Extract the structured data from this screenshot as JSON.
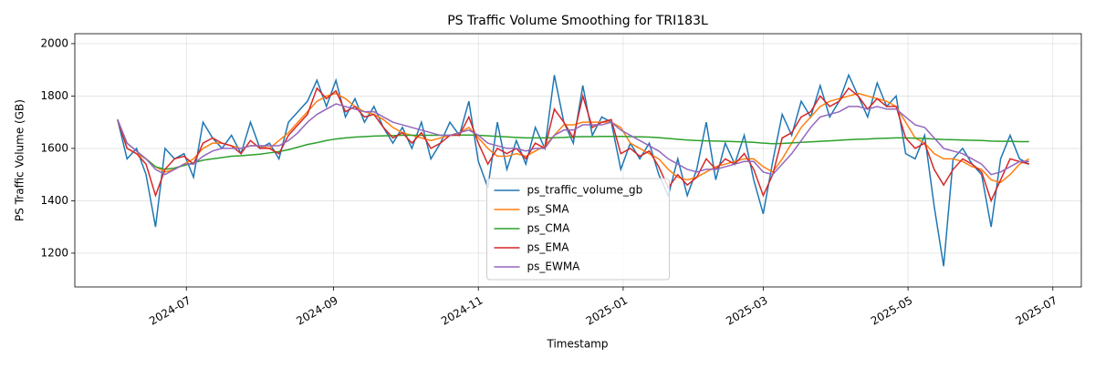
{
  "chart_data": {
    "type": "line",
    "title": "PS Traffic Volume Smoothing for TRI183L",
    "x_label": "Timestamp",
    "y_label": "PS Traffic Volume (GB)",
    "x": [
      "2024-06-02",
      "2024-06-06",
      "2024-06-10",
      "2024-06-14",
      "2024-06-18",
      "2024-06-22",
      "2024-06-26",
      "2024-06-30",
      "2024-07-04",
      "2024-07-08",
      "2024-07-12",
      "2024-07-16",
      "2024-07-20",
      "2024-07-24",
      "2024-07-28",
      "2024-08-01",
      "2024-08-05",
      "2024-08-09",
      "2024-08-13",
      "2024-08-17",
      "2024-08-21",
      "2024-08-25",
      "2024-08-29",
      "2024-09-02",
      "2024-09-06",
      "2024-09-10",
      "2024-09-14",
      "2024-09-18",
      "2024-09-22",
      "2024-09-26",
      "2024-09-30",
      "2024-10-04",
      "2024-10-08",
      "2024-10-12",
      "2024-10-16",
      "2024-10-20",
      "2024-10-24",
      "2024-10-28",
      "2024-11-01",
      "2024-11-05",
      "2024-11-09",
      "2024-11-13",
      "2024-11-17",
      "2024-11-21",
      "2024-11-25",
      "2024-11-29",
      "2024-12-03",
      "2024-12-07",
      "2024-12-11",
      "2024-12-15",
      "2024-12-19",
      "2024-12-23",
      "2024-12-27",
      "2024-12-31",
      "2025-01-04",
      "2025-01-08",
      "2025-01-12",
      "2025-01-16",
      "2025-01-20",
      "2025-01-24",
      "2025-01-28",
      "2025-02-01",
      "2025-02-05",
      "2025-02-09",
      "2025-02-13",
      "2025-02-17",
      "2025-02-21",
      "2025-02-25",
      "2025-03-01",
      "2025-03-05",
      "2025-03-09",
      "2025-03-13",
      "2025-03-17",
      "2025-03-21",
      "2025-03-25",
      "2025-03-29",
      "2025-04-02",
      "2025-04-06",
      "2025-04-10",
      "2025-04-14",
      "2025-04-18",
      "2025-04-22",
      "2025-04-26",
      "2025-04-30",
      "2025-05-04",
      "2025-05-08",
      "2025-05-12",
      "2025-05-16",
      "2025-05-20",
      "2025-05-24",
      "2025-05-28",
      "2025-06-01",
      "2025-06-05",
      "2025-06-09",
      "2025-06-13",
      "2025-06-17",
      "2025-06-21"
    ],
    "series": [
      {
        "name": "ps_traffic_volume_gb",
        "color": "#1f77b4",
        "values": [
          1710,
          1560,
          1600,
          1500,
          1300,
          1600,
          1560,
          1580,
          1490,
          1700,
          1640,
          1600,
          1650,
          1580,
          1700,
          1600,
          1620,
          1560,
          1700,
          1740,
          1780,
          1860,
          1760,
          1860,
          1720,
          1790,
          1700,
          1760,
          1680,
          1620,
          1680,
          1600,
          1700,
          1560,
          1620,
          1700,
          1650,
          1780,
          1550,
          1450,
          1700,
          1520,
          1630,
          1540,
          1680,
          1600,
          1880,
          1700,
          1620,
          1840,
          1650,
          1720,
          1700,
          1520,
          1620,
          1560,
          1620,
          1500,
          1420,
          1560,
          1420,
          1520,
          1700,
          1480,
          1620,
          1540,
          1650,
          1480,
          1350,
          1550,
          1730,
          1650,
          1780,
          1720,
          1840,
          1720,
          1780,
          1880,
          1800,
          1720,
          1850,
          1760,
          1800,
          1580,
          1560,
          1650,
          1380,
          1150,
          1560,
          1600,
          1540,
          1500,
          1300,
          1560,
          1650,
          1560,
          1540
        ]
      },
      {
        "name": "ps_SMA",
        "color": "#ff7f0e",
        "values": [
          1710,
          1600,
          1580,
          1560,
          1530,
          1510,
          1520,
          1540,
          1560,
          1600,
          1620,
          1620,
          1610,
          1600,
          1610,
          1610,
          1600,
          1630,
          1660,
          1700,
          1740,
          1780,
          1800,
          1810,
          1790,
          1760,
          1740,
          1730,
          1710,
          1680,
          1660,
          1650,
          1640,
          1630,
          1640,
          1650,
          1660,
          1680,
          1640,
          1600,
          1570,
          1570,
          1580,
          1570,
          1590,
          1610,
          1650,
          1690,
          1690,
          1700,
          1700,
          1700,
          1700,
          1680,
          1620,
          1600,
          1580,
          1560,
          1520,
          1490,
          1480,
          1490,
          1510,
          1530,
          1540,
          1550,
          1560,
          1560,
          1530,
          1510,
          1560,
          1620,
          1680,
          1720,
          1760,
          1780,
          1790,
          1800,
          1810,
          1800,
          1790,
          1780,
          1760,
          1700,
          1640,
          1620,
          1580,
          1560,
          1560,
          1550,
          1530,
          1520,
          1480,
          1470,
          1500,
          1540,
          1560
        ]
      },
      {
        "name": "ps_CMA",
        "color": "#2ca02c",
        "values": [
          1710,
          1620,
          1590,
          1560,
          1530,
          1520,
          1525,
          1535,
          1545,
          1555,
          1560,
          1565,
          1570,
          1572,
          1575,
          1578,
          1583,
          1588,
          1595,
          1605,
          1615,
          1622,
          1630,
          1636,
          1640,
          1643,
          1645,
          1647,
          1648,
          1649,
          1650,
          1650,
          1650,
          1650,
          1650,
          1650,
          1651,
          1651,
          1650,
          1648,
          1646,
          1644,
          1642,
          1640,
          1640,
          1640,
          1641,
          1642,
          1644,
          1645,
          1645,
          1646,
          1646,
          1646,
          1645,
          1644,
          1643,
          1641,
          1638,
          1635,
          1632,
          1630,
          1629,
          1628,
          1627,
          1626,
          1625,
          1623,
          1620,
          1618,
          1619,
          1621,
          1623,
          1625,
          1627,
          1629,
          1631,
          1633,
          1635,
          1636,
          1638,
          1639,
          1640,
          1640,
          1639,
          1638,
          1636,
          1634,
          1633,
          1632,
          1631,
          1630,
          1628,
          1627,
          1627,
          1626,
          1626
        ]
      },
      {
        "name": "ps_EMA",
        "color": "#d62728",
        "values": [
          1710,
          1600,
          1580,
          1540,
          1420,
          1520,
          1560,
          1570,
          1540,
          1620,
          1640,
          1620,
          1610,
          1580,
          1630,
          1600,
          1600,
          1580,
          1650,
          1690,
          1730,
          1830,
          1790,
          1820,
          1740,
          1760,
          1720,
          1730,
          1680,
          1640,
          1660,
          1620,
          1660,
          1600,
          1620,
          1650,
          1650,
          1720,
          1620,
          1540,
          1600,
          1580,
          1600,
          1560,
          1620,
          1600,
          1750,
          1700,
          1640,
          1800,
          1680,
          1700,
          1710,
          1580,
          1600,
          1570,
          1590,
          1530,
          1450,
          1500,
          1460,
          1490,
          1560,
          1520,
          1560,
          1540,
          1580,
          1520,
          1420,
          1500,
          1640,
          1660,
          1720,
          1740,
          1800,
          1760,
          1780,
          1830,
          1800,
          1750,
          1790,
          1760,
          1760,
          1640,
          1600,
          1620,
          1520,
          1460,
          1520,
          1560,
          1540,
          1510,
          1400,
          1480,
          1560,
          1550,
          1540
        ]
      },
      {
        "name": "ps_EWMA",
        "color": "#9467bd",
        "values": [
          1710,
          1620,
          1590,
          1560,
          1520,
          1500,
          1520,
          1540,
          1540,
          1570,
          1590,
          1600,
          1600,
          1600,
          1610,
          1610,
          1610,
          1610,
          1630,
          1660,
          1700,
          1730,
          1750,
          1770,
          1760,
          1750,
          1740,
          1740,
          1720,
          1700,
          1690,
          1680,
          1670,
          1660,
          1650,
          1650,
          1660,
          1670,
          1650,
          1620,
          1610,
          1600,
          1600,
          1590,
          1600,
          1600,
          1650,
          1670,
          1670,
          1690,
          1690,
          1690,
          1700,
          1670,
          1650,
          1630,
          1610,
          1590,
          1560,
          1540,
          1520,
          1510,
          1520,
          1520,
          1530,
          1540,
          1550,
          1550,
          1510,
          1500,
          1540,
          1580,
          1630,
          1680,
          1720,
          1730,
          1740,
          1760,
          1760,
          1750,
          1760,
          1750,
          1750,
          1720,
          1690,
          1680,
          1640,
          1600,
          1590,
          1580,
          1560,
          1540,
          1500,
          1510,
          1530,
          1550,
          1550
        ]
      }
    ],
    "xlim": [
      "2024-05-15",
      "2025-07-13"
    ],
    "xticks": [
      {
        "value": "2024-07-01",
        "label": "2024-07"
      },
      {
        "value": "2024-09-01",
        "label": "2024-09"
      },
      {
        "value": "2024-11-01",
        "label": "2024-11"
      },
      {
        "value": "2025-01-01",
        "label": "2025-01"
      },
      {
        "value": "2025-03-01",
        "label": "2025-03"
      },
      {
        "value": "2025-05-01",
        "label": "2025-05"
      },
      {
        "value": "2025-07-01",
        "label": "2025-07"
      }
    ],
    "ylim": [
      1071,
      2038
    ],
    "yticks": [
      1200,
      1400,
      1600,
      1800,
      2000
    ],
    "grid": true,
    "legend": "lower center"
  }
}
